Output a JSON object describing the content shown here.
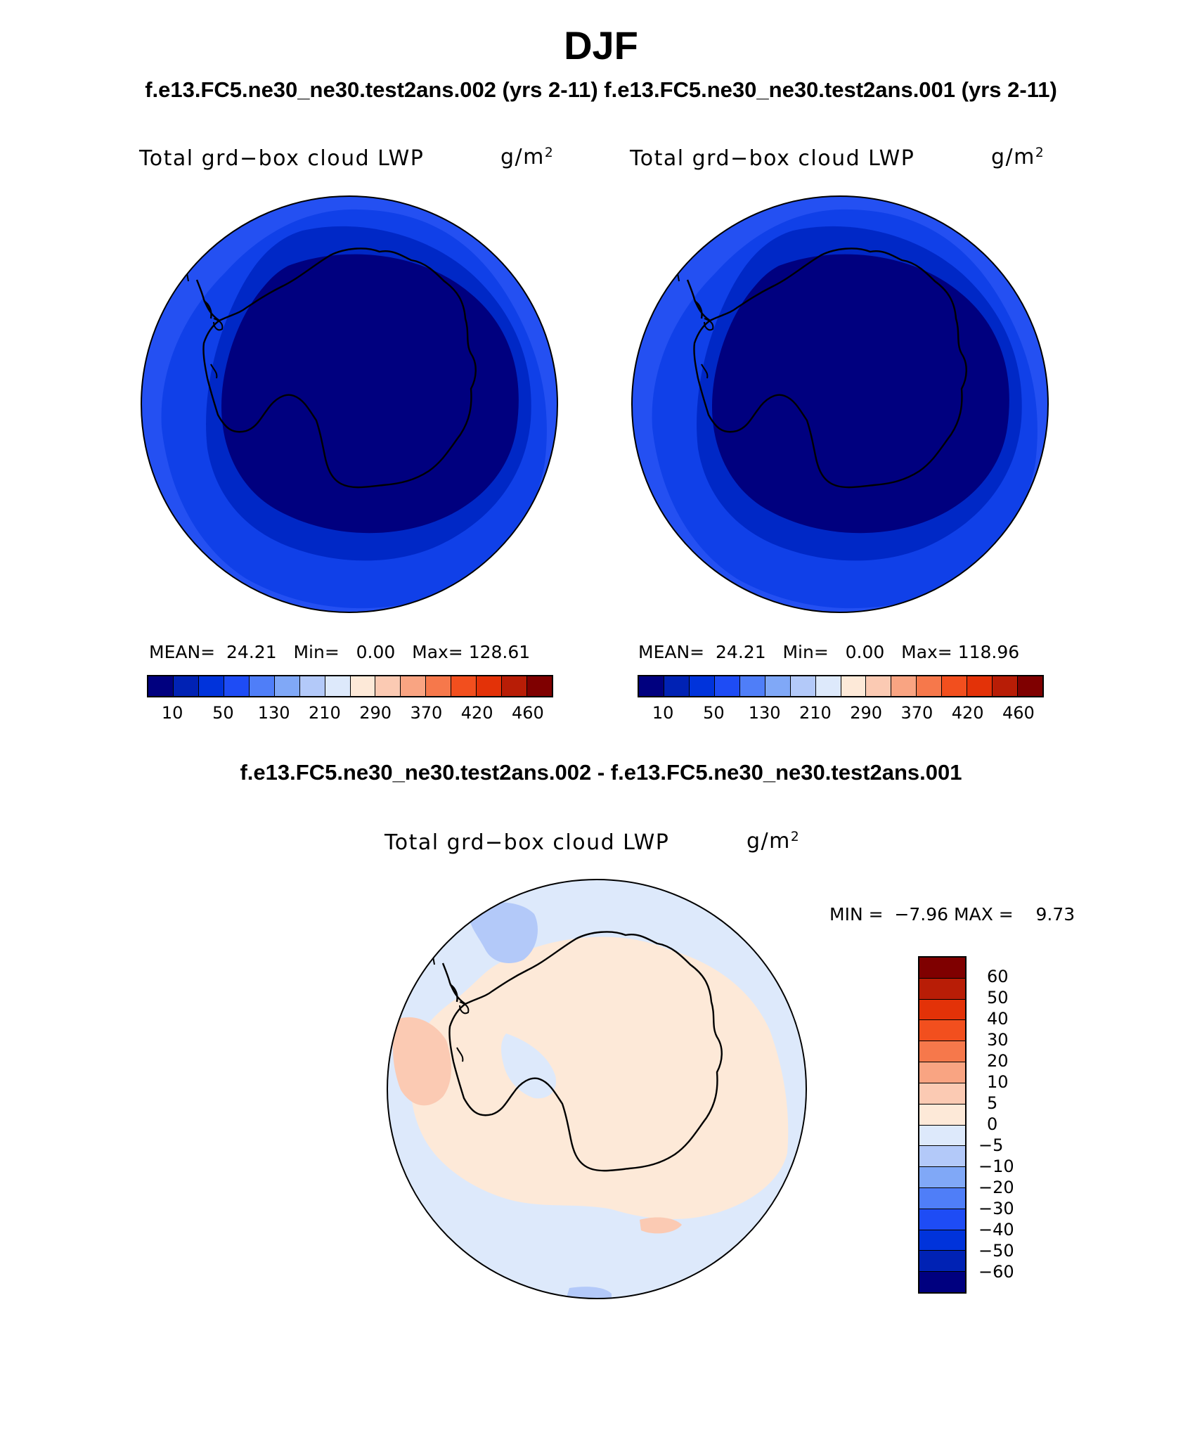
{
  "title": "DJF",
  "subtitle_top": "f.e13.FC5.ne30_ne30.test2ans.002 (yrs 2-11) f.e13.FC5.ne30_ne30.test2ans.001 (yrs 2-11)",
  "subtitle_diff": "f.e13.FC5.ne30_ne30.test2ans.002 - f.e13.FC5.ne30_ne30.test2ans.001",
  "variable": "Total grd−box cloud LWP",
  "units_base": "g/m",
  "units_exp": "2",
  "colors": {
    "mean_scale": [
      "#00007f",
      "#0022b4",
      "#0033db",
      "#1e4cf5",
      "#4f7ef8",
      "#80a8f7",
      "#b3c9f9",
      "#dde9fb",
      "#fde9d8",
      "#fbcab3",
      "#f9a482",
      "#f6784b",
      "#f24f1e",
      "#e33208",
      "#b81d06",
      "#7f0000"
    ],
    "diff_scale": [
      "#00007f",
      "#0022b4",
      "#0033db",
      "#1e4cf5",
      "#4f7ef8",
      "#80a8f7",
      "#b3c9f9",
      "#dde9fb",
      "#fde9d8",
      "#fbcab3",
      "#f9a482",
      "#f6784b",
      "#f24f1e",
      "#e33208",
      "#b81d06",
      "#7f0000"
    ]
  },
  "left_panel": {
    "mean_label": "MEAN=",
    "mean_value": "24.21",
    "min_label": "Min=",
    "min_value": "0.00",
    "max_label": "Max=",
    "max_value": "128.61"
  },
  "right_panel": {
    "mean_label": "MEAN=",
    "mean_value": "24.21",
    "min_label": "Min=",
    "min_value": "0.00",
    "max_label": "Max=",
    "max_value": "118.96"
  },
  "mean_colorbar_ticks": [
    "10",
    "50",
    "130",
    "210",
    "290",
    "370",
    "420",
    "460"
  ],
  "diff_panel": {
    "min_label": "MIN =",
    "min_value": "−7.96",
    "max_label": "MAX =",
    "max_value": "9.73"
  },
  "diff_colorbar_ticks": [
    "60",
    "50",
    "40",
    "30",
    "20",
    "10",
    "5",
    "0",
    "−5",
    "−10",
    "−20",
    "−30",
    "−40",
    "−50",
    "−60"
  ]
}
